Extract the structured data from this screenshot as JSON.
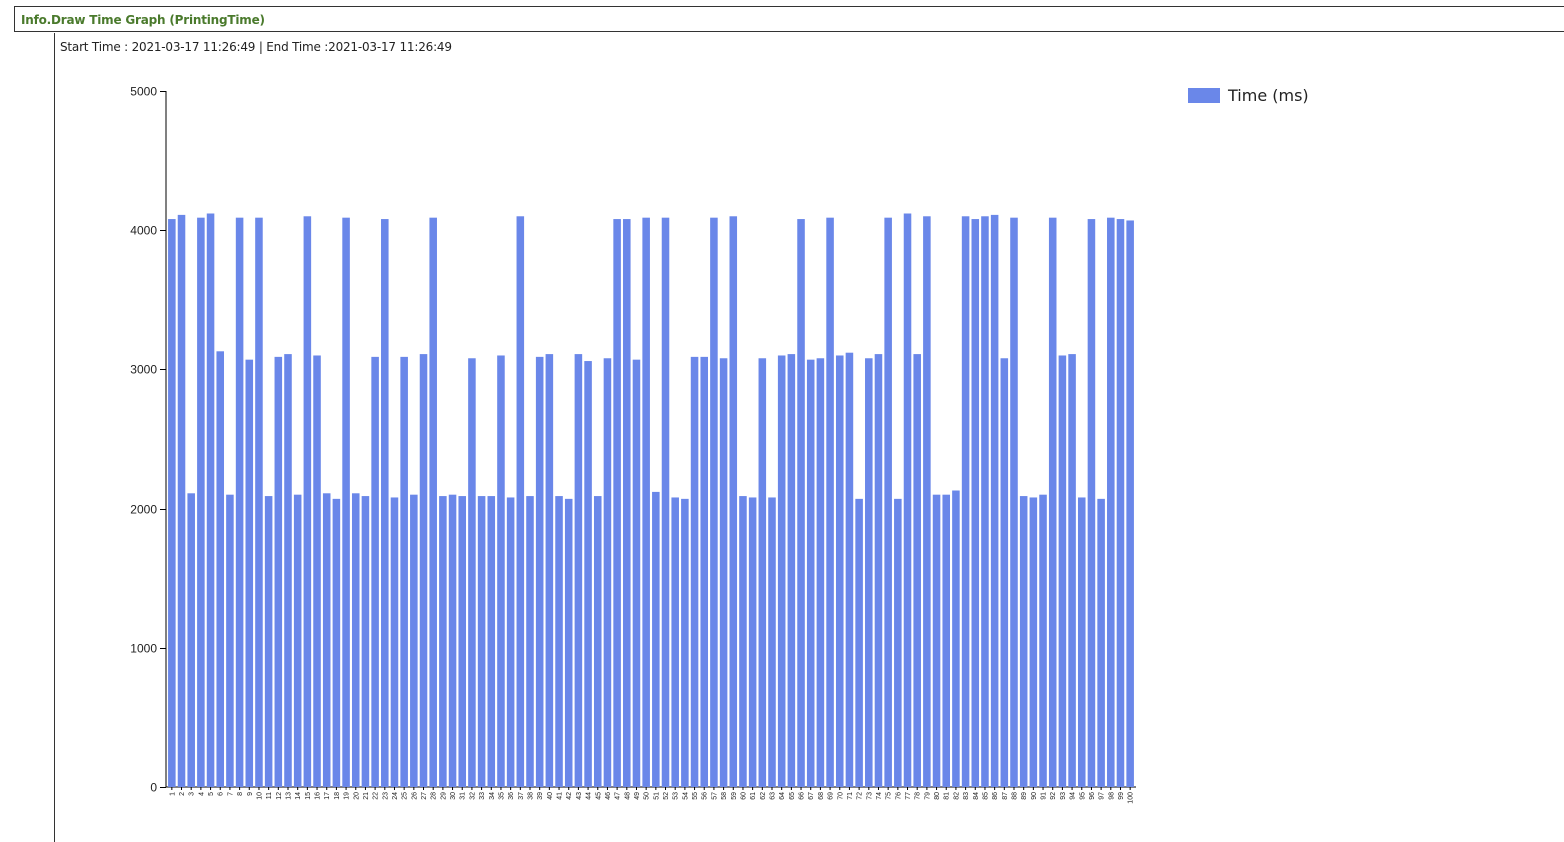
{
  "panel": {
    "title": "Info.Draw Time Graph (PrintingTime)"
  },
  "time_range": "Start Time : 2021-03-17 11:26:49 | End Time :2021-03-17 11:26:49",
  "colors": {
    "bar": "#6a87e9",
    "panel_title": "#4a7a2c"
  },
  "chart_data": {
    "type": "bar",
    "title": "",
    "xlabel": "",
    "ylabel": "",
    "ylim": [
      0,
      5000
    ],
    "yticks": [
      0,
      1000,
      2000,
      3000,
      4000,
      5000
    ],
    "legend": "top-right",
    "categories": [
      "1",
      "2",
      "3",
      "4",
      "5",
      "6",
      "7",
      "8",
      "9",
      "10",
      "11",
      "12",
      "13",
      "14",
      "15",
      "16",
      "17",
      "18",
      "19",
      "20",
      "21",
      "22",
      "23",
      "24",
      "25",
      "26",
      "27",
      "28",
      "29",
      "30",
      "31",
      "32",
      "33",
      "34",
      "35",
      "36",
      "37",
      "38",
      "39",
      "40",
      "41",
      "42",
      "43",
      "44",
      "45",
      "46",
      "47",
      "48",
      "49",
      "50",
      "51",
      "52",
      "53",
      "54",
      "55",
      "56",
      "57",
      "58",
      "59",
      "60",
      "61",
      "62",
      "63",
      "64",
      "65",
      "66",
      "67",
      "68",
      "69",
      "70",
      "71",
      "72",
      "73",
      "74",
      "75",
      "76",
      "77",
      "78",
      "79",
      "80",
      "81",
      "82",
      "83",
      "84",
      "85",
      "86",
      "87",
      "88",
      "89",
      "90",
      "91",
      "92",
      "93",
      "94",
      "95",
      "96",
      "97",
      "98",
      "99",
      "100"
    ],
    "series": [
      {
        "name": "Time (ms)",
        "values": [
          4080,
          4110,
          2110,
          4090,
          4120,
          3130,
          2100,
          4090,
          3070,
          4090,
          2090,
          3090,
          3110,
          2100,
          4100,
          3100,
          2110,
          2070,
          4090,
          2110,
          2090,
          3090,
          4080,
          2080,
          3090,
          2100,
          3110,
          4090,
          2090,
          2100,
          2090,
          3080,
          2090,
          2090,
          3100,
          2080,
          4100,
          2090,
          3090,
          3110,
          2090,
          2070,
          3110,
          3060,
          2090,
          3080,
          4080,
          4080,
          3070,
          4090,
          2120,
          4090,
          2080,
          2070,
          3090,
          3090,
          4090,
          3080,
          4100,
          2090,
          2080,
          3080,
          2080,
          3100,
          3110,
          4080,
          3070,
          3080,
          4090,
          3100,
          3120,
          2070,
          3080,
          3110,
          4090,
          2070,
          4120,
          3110,
          4100,
          2100,
          2100,
          2130,
          4100,
          4080,
          4100,
          4110,
          3080,
          4090,
          2090,
          2080,
          2100,
          4090,
          3100,
          3110,
          2080,
          4080,
          2070,
          4090,
          4080,
          4070
        ]
      }
    ]
  }
}
